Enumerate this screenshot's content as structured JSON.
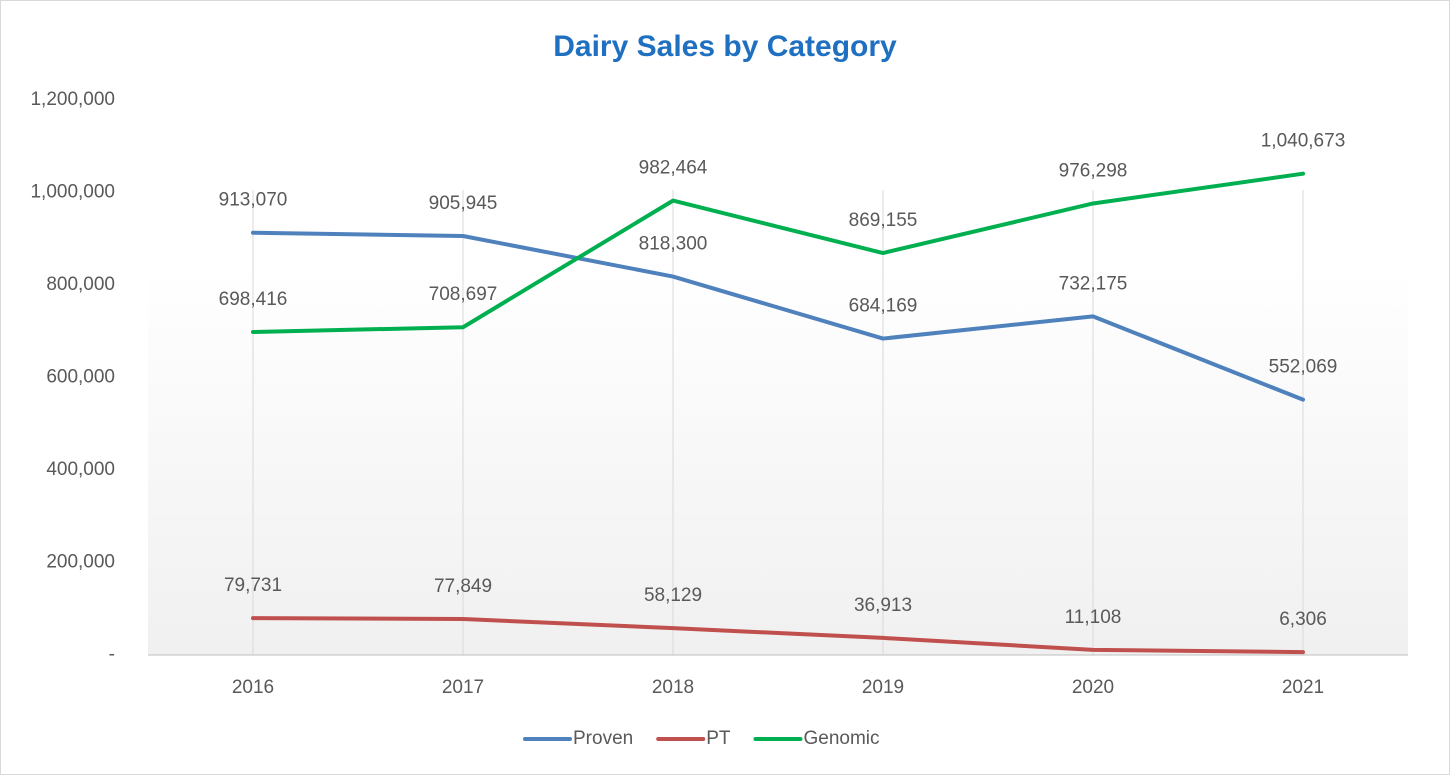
{
  "chart_data": {
    "type": "line",
    "title": "Dairy Sales by Category",
    "categories": [
      "2016",
      "2017",
      "2018",
      "2019",
      "2020",
      "2021"
    ],
    "series": [
      {
        "name": "Proven",
        "color": "#4f81bd",
        "values": [
          913070,
          905945,
          818300,
          684169,
          732175,
          552069
        ],
        "value_labels": [
          "913,070",
          "905,945",
          "818,300",
          "684,169",
          "732,175",
          "552,069"
        ]
      },
      {
        "name": "PT",
        "color": "#c0504d",
        "values": [
          79731,
          77849,
          58129,
          36913,
          11108,
          6306
        ],
        "value_labels": [
          "79,731",
          "77,849",
          "58,129",
          "36,913",
          "11,108",
          "6,306"
        ]
      },
      {
        "name": "Genomic",
        "color": "#00b050",
        "values": [
          698416,
          708697,
          982464,
          869155,
          976298,
          1040673
        ],
        "value_labels": [
          "698,416",
          "708,697",
          "982,464",
          "869,155",
          "976,298",
          "1,040,673"
        ]
      }
    ],
    "ylim": [
      0,
      1200000
    ],
    "yticks": [
      {
        "value": 0,
        "label": "-"
      },
      {
        "value": 200000,
        "label": "200,000"
      },
      {
        "value": 400000,
        "label": "400,000"
      },
      {
        "value": 600000,
        "label": "600,000"
      },
      {
        "value": 800000,
        "label": "800,000"
      },
      {
        "value": 1000000,
        "label": "1,000,000"
      },
      {
        "value": 1200000,
        "label": "1,200,000"
      }
    ],
    "legend": "bottom"
  }
}
